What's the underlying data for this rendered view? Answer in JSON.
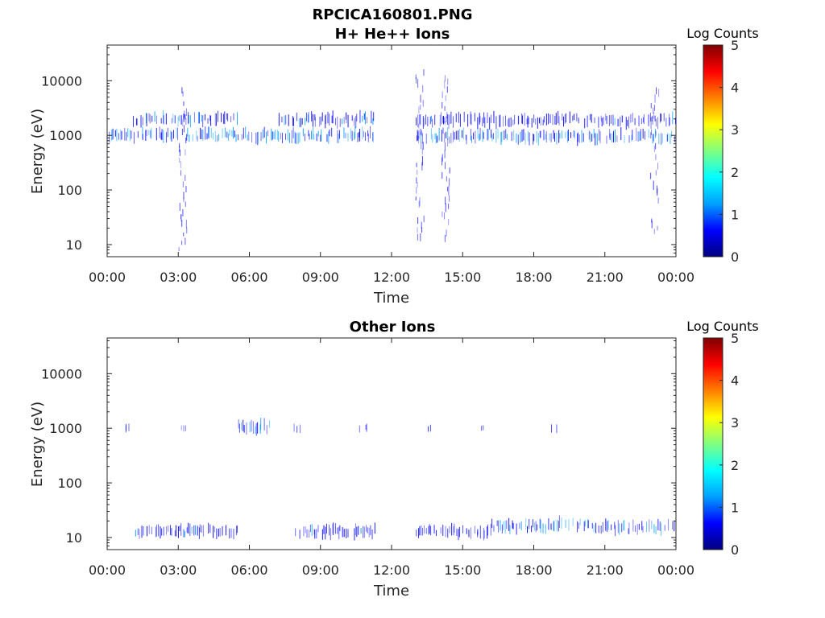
{
  "figure": {
    "title_line1": "RPCICA160801.PNG"
  },
  "colorbar": {
    "label": "Log Counts",
    "ticks": [
      "0",
      "1",
      "2",
      "3",
      "4",
      "5"
    ],
    "colors": [
      "#000080",
      "#0000ff",
      "#00a0ff",
      "#00ffff",
      "#80ff80",
      "#ffff00",
      "#ff8000",
      "#ff0000",
      "#800000"
    ]
  },
  "chart_data": [
    {
      "type": "heatmap",
      "title": "H+ He++ Ions",
      "xlabel": "Time",
      "ylabel": "Energy (eV)",
      "xlim_hours": [
        0,
        24
      ],
      "ylim": [
        6,
        45000
      ],
      "yscale": "log",
      "xticks": [
        "00:00",
        "03:00",
        "06:00",
        "09:00",
        "12:00",
        "15:00",
        "18:00",
        "21:00",
        "00:00"
      ],
      "yticks": [
        "10",
        "100",
        "1000",
        "10000"
      ],
      "zlabel": "Log Counts",
      "zlim": [
        0,
        5
      ],
      "bands": [
        {
          "t_start": 0.0,
          "t_end": 11.3,
          "energy_eV": 1000,
          "log_counts": 1.0
        },
        {
          "t_start": 1.1,
          "t_end": 5.5,
          "energy_eV": 2000,
          "log_counts": 0.9
        },
        {
          "t_start": 7.2,
          "t_end": 11.3,
          "energy_eV": 1950,
          "log_counts": 0.9
        },
        {
          "t_start": 13.0,
          "t_end": 24.0,
          "energy_eV": 950,
          "log_counts": 1.0
        },
        {
          "t_start": 13.0,
          "t_end": 24.0,
          "energy_eV": 1900,
          "log_counts": 0.8
        }
      ],
      "spikes": [
        {
          "t": 3.2,
          "energy_min_eV": 8,
          "energy_max_eV": 7000,
          "log_counts": 0.6
        },
        {
          "t": 13.2,
          "energy_min_eV": 10,
          "energy_max_eV": 15000,
          "log_counts": 0.6
        },
        {
          "t": 14.3,
          "energy_min_eV": 10,
          "energy_max_eV": 12000,
          "log_counts": 0.6
        },
        {
          "t": 23.1,
          "energy_min_eV": 15,
          "energy_max_eV": 10000,
          "log_counts": 0.6
        }
      ]
    },
    {
      "type": "heatmap",
      "title": "Other Ions",
      "xlabel": "Time",
      "ylabel": "Energy (eV)",
      "xlim_hours": [
        0,
        24
      ],
      "ylim": [
        6,
        45000
      ],
      "yscale": "log",
      "xticks": [
        "00:00",
        "03:00",
        "06:00",
        "09:00",
        "12:00",
        "15:00",
        "18:00",
        "21:00",
        "00:00"
      ],
      "yticks": [
        "10",
        "100",
        "1000",
        "10000"
      ],
      "zlabel": "Log Counts",
      "zlim": [
        0,
        5
      ],
      "bands": [
        {
          "t_start": 1.2,
          "t_end": 5.6,
          "energy_eV": 13,
          "log_counts": 0.8
        },
        {
          "t_start": 7.9,
          "t_end": 11.3,
          "energy_eV": 13,
          "log_counts": 0.8
        },
        {
          "t_start": 13.0,
          "t_end": 16.2,
          "energy_eV": 13,
          "log_counts": 0.7
        },
        {
          "t_start": 16.2,
          "t_end": 19.0,
          "energy_eV": 16,
          "log_counts": 1.0
        },
        {
          "t_start": 19.0,
          "t_end": 20.5,
          "energy_eV": 18,
          "log_counts": 1.0
        },
        {
          "t_start": 20.5,
          "t_end": 24.0,
          "energy_eV": 15,
          "log_counts": 1.0
        },
        {
          "t_start": 5.5,
          "t_end": 6.9,
          "energy_eV": 1050,
          "log_counts": 0.9
        }
      ],
      "spikes": [
        {
          "t": 0.9,
          "energy_min_eV": 950,
          "energy_max_eV": 1050,
          "log_counts": 0.5
        },
        {
          "t": 3.3,
          "energy_min_eV": 950,
          "energy_max_eV": 1050,
          "log_counts": 0.5
        },
        {
          "t": 8.0,
          "energy_min_eV": 950,
          "energy_max_eV": 1050,
          "log_counts": 0.5
        },
        {
          "t": 10.8,
          "energy_min_eV": 950,
          "energy_max_eV": 1050,
          "log_counts": 0.5
        },
        {
          "t": 13.7,
          "energy_min_eV": 950,
          "energy_max_eV": 1050,
          "log_counts": 0.5
        },
        {
          "t": 15.8,
          "energy_min_eV": 950,
          "energy_max_eV": 1050,
          "log_counts": 0.5
        },
        {
          "t": 18.8,
          "energy_min_eV": 950,
          "energy_max_eV": 1050,
          "log_counts": 0.5
        }
      ]
    }
  ]
}
